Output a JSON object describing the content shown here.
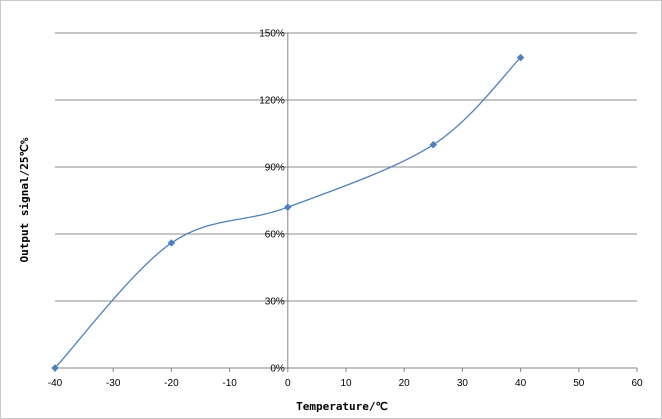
{
  "chart_data": {
    "type": "scatter",
    "title": "",
    "xlabel": "Temperature/℃",
    "ylabel": "Output signal/25℃%",
    "xlim": [
      -40,
      60
    ],
    "ylim": [
      0,
      150
    ],
    "x_ticks": [
      -40,
      -30,
      -20,
      -10,
      0,
      10,
      20,
      30,
      40,
      50,
      60
    ],
    "x_tick_labels": [
      "-40",
      "-30",
      "-20",
      "-10",
      "0",
      "10",
      "20",
      "30",
      "40",
      "50",
      "60"
    ],
    "y_ticks": [
      0,
      30,
      60,
      90,
      120,
      150
    ],
    "y_tick_labels": [
      "0%",
      "30%",
      "60%",
      "90%",
      "120%",
      "150%"
    ],
    "grid": "horizontal",
    "legend": "none",
    "smooth": true,
    "series": [
      {
        "x": [
          -40,
          -20,
          0,
          25,
          40
        ],
        "y": [
          0,
          56,
          72,
          100,
          139
        ],
        "color": "#4f81bd",
        "marker": "diamond"
      }
    ]
  }
}
